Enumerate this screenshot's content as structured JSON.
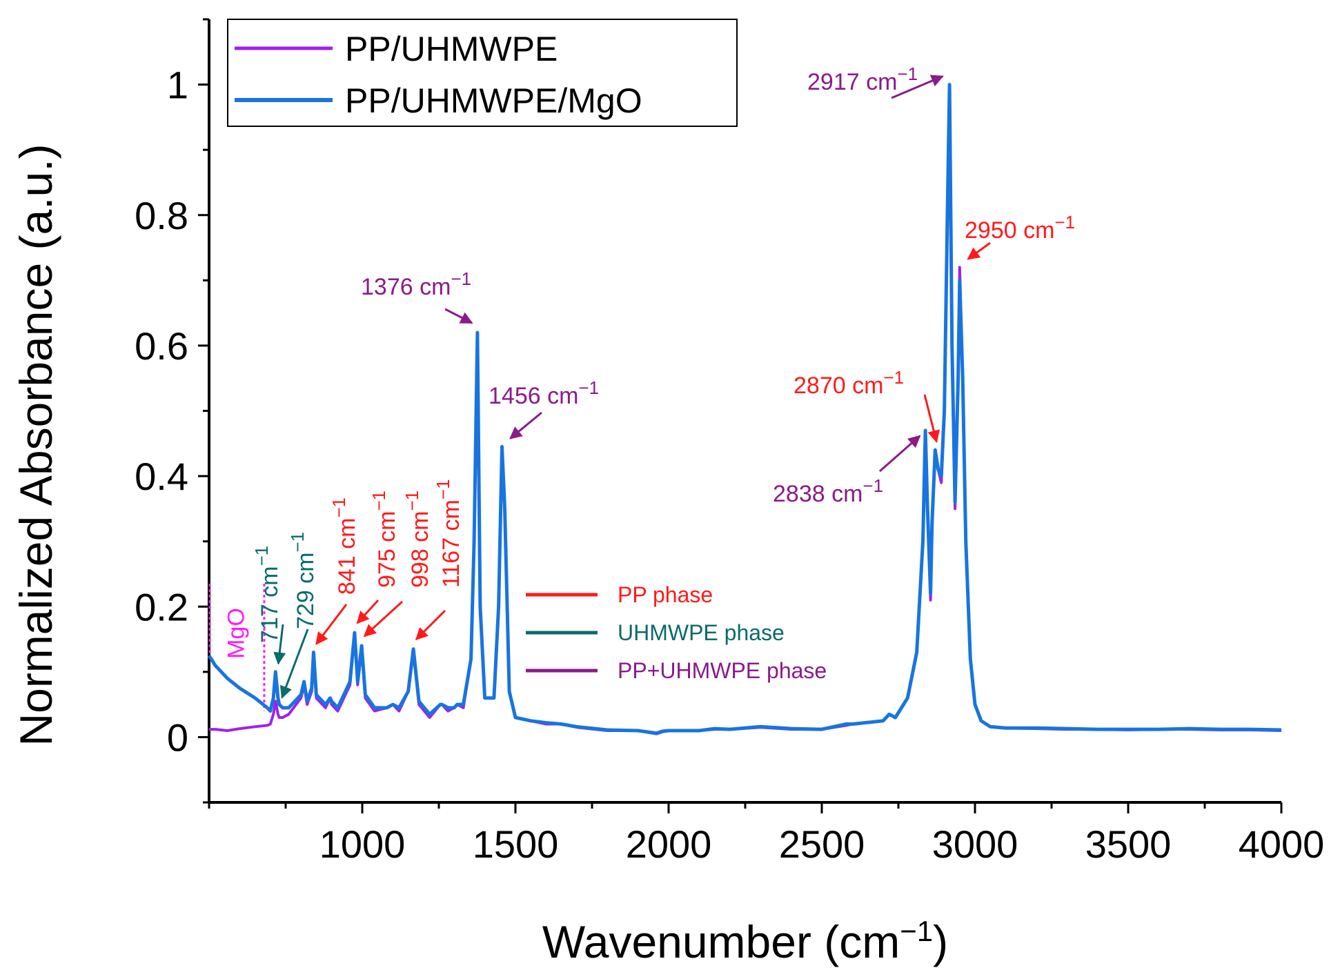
{
  "chart_data": {
    "type": "line",
    "title": "",
    "xlabel": "Wavenumber (cm",
    "xlabel_sup": "−1",
    "xlabel_close": ")",
    "ylabel": "Normalized Absorbance (a.u.)",
    "xlim": [
      500,
      4000
    ],
    "ylim": [
      -0.1,
      1.1
    ],
    "x_ticks": [
      1000,
      1500,
      2000,
      2500,
      3000,
      3500,
      4000
    ],
    "y_ticks": [
      0,
      0.2,
      0.4,
      0.6,
      0.8,
      1
    ],
    "y_tick_labels": [
      "0",
      "0.2",
      "0.4",
      "0.6",
      "0.8",
      "1"
    ],
    "grid": false,
    "legend_position": "top-left",
    "series": [
      {
        "name": "PP/UHMWPE",
        "color": "#a020f0",
        "x": [
          500,
          520,
          560,
          600,
          650,
          690,
          700,
          710,
          717,
          725,
          729,
          740,
          760,
          800,
          810,
          820,
          835,
          841,
          850,
          880,
          895,
          900,
          920,
          960,
          975,
          985,
          998,
          1010,
          1040,
          1080,
          1100,
          1120,
          1150,
          1167,
          1185,
          1220,
          1255,
          1260,
          1280,
          1300,
          1310,
          1330,
          1355,
          1365,
          1376,
          1385,
          1400,
          1430,
          1445,
          1456,
          1465,
          1480,
          1500,
          1550,
          1600,
          1650,
          1700,
          1800,
          1900,
          1960,
          1980,
          2000,
          2100,
          2150,
          2200,
          2300,
          2400,
          2500,
          2580,
          2600,
          2700,
          2720,
          2740,
          2780,
          2810,
          2830,
          2838,
          2845,
          2855,
          2860,
          2870,
          2880,
          2890,
          2900,
          2910,
          2917,
          2925,
          2935,
          2945,
          2950,
          2960,
          2970,
          2985,
          3000,
          3020,
          3050,
          3100,
          3200,
          3300,
          3400,
          3500,
          3600,
          3700,
          3800,
          3900,
          4000
        ],
        "y": [
          0.012,
          0.012,
          0.01,
          0.013,
          0.016,
          0.018,
          0.02,
          0.035,
          0.055,
          0.035,
          0.03,
          0.03,
          0.035,
          0.06,
          0.08,
          0.05,
          0.07,
          0.12,
          0.06,
          0.045,
          0.06,
          0.05,
          0.04,
          0.08,
          0.16,
          0.08,
          0.135,
          0.06,
          0.04,
          0.045,
          0.05,
          0.04,
          0.07,
          0.13,
          0.05,
          0.03,
          0.05,
          0.05,
          0.04,
          0.045,
          0.05,
          0.045,
          0.12,
          0.3,
          0.62,
          0.2,
          0.06,
          0.06,
          0.2,
          0.445,
          0.35,
          0.07,
          0.03,
          0.025,
          0.02,
          0.02,
          0.015,
          0.01,
          0.01,
          0.005,
          0.008,
          0.01,
          0.01,
          0.012,
          0.012,
          0.015,
          0.012,
          0.012,
          0.018,
          0.02,
          0.025,
          0.035,
          0.03,
          0.06,
          0.13,
          0.3,
          0.47,
          0.35,
          0.21,
          0.32,
          0.44,
          0.41,
          0.39,
          0.5,
          0.8,
          1.0,
          0.6,
          0.35,
          0.55,
          0.72,
          0.55,
          0.3,
          0.12,
          0.05,
          0.025,
          0.016,
          0.014,
          0.013,
          0.012,
          0.012,
          0.011,
          0.012,
          0.012,
          0.011,
          0.011,
          0.01
        ]
      },
      {
        "name": "PP/UHMWPE/MgO",
        "color": "#1874e0",
        "x": [
          500,
          520,
          560,
          600,
          650,
          690,
          700,
          710,
          717,
          725,
          729,
          740,
          760,
          800,
          810,
          820,
          835,
          841,
          850,
          880,
          895,
          900,
          920,
          960,
          975,
          985,
          998,
          1010,
          1040,
          1080,
          1100,
          1120,
          1150,
          1167,
          1185,
          1220,
          1255,
          1260,
          1280,
          1300,
          1310,
          1330,
          1355,
          1365,
          1376,
          1385,
          1400,
          1430,
          1445,
          1456,
          1465,
          1480,
          1500,
          1550,
          1600,
          1650,
          1700,
          1800,
          1900,
          1960,
          1980,
          2000,
          2100,
          2150,
          2200,
          2300,
          2400,
          2500,
          2580,
          2600,
          2700,
          2720,
          2740,
          2780,
          2810,
          2830,
          2838,
          2845,
          2855,
          2860,
          2870,
          2880,
          2890,
          2900,
          2910,
          2917,
          2925,
          2935,
          2945,
          2950,
          2960,
          2970,
          2985,
          3000,
          3020,
          3050,
          3100,
          3200,
          3300,
          3400,
          3500,
          3600,
          3700,
          3800,
          3900,
          4000
        ],
        "y": [
          0.125,
          0.11,
          0.09,
          0.075,
          0.06,
          0.045,
          0.04,
          0.06,
          0.1,
          0.06,
          0.05,
          0.045,
          0.045,
          0.065,
          0.085,
          0.055,
          0.075,
          0.13,
          0.065,
          0.05,
          0.06,
          0.055,
          0.045,
          0.085,
          0.16,
          0.085,
          0.14,
          0.065,
          0.045,
          0.045,
          0.05,
          0.045,
          0.07,
          0.135,
          0.055,
          0.035,
          0.05,
          0.05,
          0.045,
          0.045,
          0.05,
          0.05,
          0.12,
          0.3,
          0.62,
          0.2,
          0.06,
          0.06,
          0.2,
          0.445,
          0.35,
          0.07,
          0.03,
          0.025,
          0.022,
          0.02,
          0.016,
          0.011,
          0.01,
          0.006,
          0.009,
          0.01,
          0.01,
          0.013,
          0.012,
          0.016,
          0.013,
          0.012,
          0.02,
          0.02,
          0.025,
          0.035,
          0.03,
          0.06,
          0.13,
          0.3,
          0.47,
          0.35,
          0.22,
          0.33,
          0.44,
          0.41,
          0.4,
          0.5,
          0.8,
          1.0,
          0.6,
          0.36,
          0.55,
          0.7,
          0.55,
          0.3,
          0.12,
          0.05,
          0.025,
          0.016,
          0.014,
          0.014,
          0.013,
          0.012,
          0.012,
          0.012,
          0.013,
          0.012,
          0.012,
          0.011
        ]
      }
    ],
    "annotations": [
      {
        "label": "2917 cm",
        "sup": "−1",
        "color": "#8b1a8b",
        "x": 2917,
        "y": 1.0
      },
      {
        "label": "2950 cm",
        "sup": "−1",
        "color": "#ff1a1a",
        "x": 2950,
        "y": 0.72
      },
      {
        "label": "1376 cm",
        "sup": "−1",
        "color": "#8b1a8b",
        "x": 1376,
        "y": 0.62
      },
      {
        "label": "1456 cm",
        "sup": "−1",
        "color": "#8b1a8b",
        "x": 1456,
        "y": 0.445
      },
      {
        "label": "2870 cm",
        "sup": "−1",
        "color": "#ff1a1a",
        "x": 2870,
        "y": 0.44
      },
      {
        "label": "2838 cm",
        "sup": "−1",
        "color": "#8b1a8b",
        "x": 2838,
        "y": 0.47
      }
    ],
    "vertical_annotations": [
      {
        "label": "717 cm",
        "sup": "−1",
        "color": "#0a6b6b",
        "x": 717
      },
      {
        "label": "729 cm",
        "sup": "−1",
        "color": "#0a6b6b",
        "x": 729
      },
      {
        "label": "841 cm",
        "sup": "−1",
        "color": "#ff1a1a",
        "x": 841
      },
      {
        "label": "975 cm",
        "sup": "−1",
        "color": "#ff1a1a",
        "x": 975
      },
      {
        "label": "998 cm",
        "sup": "−1",
        "color": "#ff1a1a",
        "x": 998
      },
      {
        "label": "1167 cm",
        "sup": "−1",
        "color": "#ff1a1a",
        "x": 1167
      }
    ],
    "mgo_label": "MgO",
    "mgo_color": "#ff1aff",
    "mgo_range": [
      500,
      680
    ],
    "phase_legend": [
      {
        "label": "PP phase",
        "color": "#ff1a1a"
      },
      {
        "label": "UHMWPE phase",
        "color": "#0a6b6b"
      },
      {
        "label": "PP+UHMWPE phase",
        "color": "#8b1a8b"
      }
    ]
  }
}
